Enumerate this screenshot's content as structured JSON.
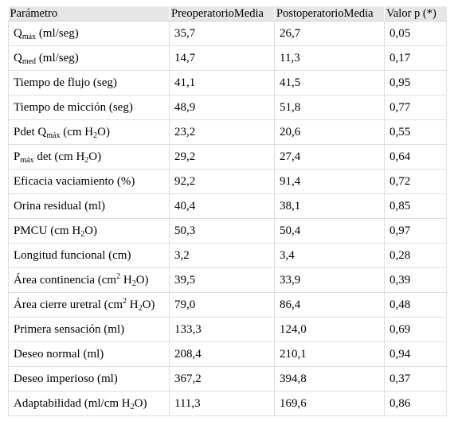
{
  "table": {
    "headers": [
      "Parámetro",
      "PreoperatorioMedia",
      "PostoperatorioMedia",
      "Valor p (*)"
    ],
    "rows": [
      {
        "param": [
          {
            "t": "Q"
          },
          {
            "t": "máx",
            "s": "sub"
          },
          {
            "t": " (ml/seg)"
          }
        ],
        "pre": "35,7",
        "post": "26,7",
        "p": "0,05"
      },
      {
        "param": [
          {
            "t": "Q"
          },
          {
            "t": "med",
            "s": "sub"
          },
          {
            "t": " (ml/seg)"
          }
        ],
        "pre": "14,7",
        "post": "11,3",
        "p": "0,17"
      },
      {
        "param": [
          {
            "t": "Tiempo de flujo (seg)"
          }
        ],
        "pre": "41,1",
        "post": "41,5",
        "p": "0,95"
      },
      {
        "param": [
          {
            "t": "Tiempo de micción (seg)"
          }
        ],
        "pre": "48,9",
        "post": "51,8",
        "p": "0,77"
      },
      {
        "param": [
          {
            "t": "Pdet Q"
          },
          {
            "t": "máx",
            "s": "sub"
          },
          {
            "t": " (cm H"
          },
          {
            "t": "2",
            "s": "sub"
          },
          {
            "t": "O)"
          }
        ],
        "pre": "23,2",
        "post": "20,6",
        "p": "0,55"
      },
      {
        "param": [
          {
            "t": "P"
          },
          {
            "t": "máx",
            "s": "sub"
          },
          {
            "t": " det (cm H"
          },
          {
            "t": "2",
            "s": "sub"
          },
          {
            "t": "O)"
          }
        ],
        "pre": "29,2",
        "post": "27,4",
        "p": "0,64"
      },
      {
        "param": [
          {
            "t": "Eficacia vaciamiento (%)"
          }
        ],
        "pre": "92,2",
        "post": "91,4",
        "p": "0,72"
      },
      {
        "param": [
          {
            "t": "Orina residual (ml)"
          }
        ],
        "pre": "40,4",
        "post": "38,1",
        "p": "0,85"
      },
      {
        "param": [
          {
            "t": "PMCU (cm H"
          },
          {
            "t": "2",
            "s": "sub"
          },
          {
            "t": "O)"
          }
        ],
        "pre": "50,3",
        "post": "50,4",
        "p": "0,97"
      },
      {
        "param": [
          {
            "t": "Longitud funcional (cm)"
          }
        ],
        "pre": "3,2",
        "post": "3,4",
        "p": "0,28"
      },
      {
        "param": [
          {
            "t": "Área continencia (cm"
          },
          {
            "t": "2",
            "s": "sup"
          },
          {
            "t": " H"
          },
          {
            "t": "2",
            "s": "sub"
          },
          {
            "t": "O)"
          }
        ],
        "pre": "39,5",
        "post": "33,9",
        "p": "0,39"
      },
      {
        "param": [
          {
            "t": "Área cierre uretral (cm"
          },
          {
            "t": "2",
            "s": "sup"
          },
          {
            "t": " H"
          },
          {
            "t": "2",
            "s": "sub"
          },
          {
            "t": "O)"
          }
        ],
        "pre": "79,0",
        "post": "86,4",
        "p": "0,48"
      },
      {
        "param": [
          {
            "t": "Primera sensación (ml)"
          }
        ],
        "pre": "133,3",
        "post": "124,0",
        "p": "0,69"
      },
      {
        "param": [
          {
            "t": "Deseo normal (ml)"
          }
        ],
        "pre": "208,4",
        "post": "210,1",
        "p": "0,94"
      },
      {
        "param": [
          {
            "t": "Deseo imperioso (ml)"
          }
        ],
        "pre": "367,2",
        "post": "394,8",
        "p": "0,37"
      },
      {
        "param": [
          {
            "t": "Adaptabilidad (ml/cm H"
          },
          {
            "t": "2",
            "s": "sub"
          },
          {
            "t": "O)"
          }
        ],
        "pre": "111,3",
        "post": "169,6",
        "p": "0,86"
      }
    ]
  }
}
